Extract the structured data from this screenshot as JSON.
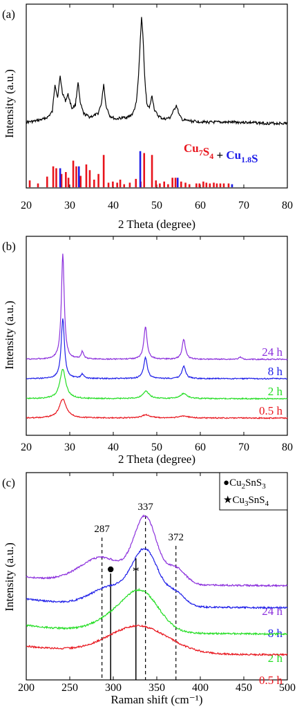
{
  "chart_data": [
    {
      "panel_label": "(a)",
      "type": "line",
      "xlabel": "2 Theta (degree)",
      "ylabel": "Intensity (a.u.)",
      "xlim": [
        20,
        80
      ],
      "xticks": [
        20,
        30,
        40,
        50,
        60,
        70,
        80
      ],
      "series": [
        {
          "color": "#000000",
          "x": [
            20,
            22,
            24,
            25,
            26,
            26.6,
            27.2,
            27.8,
            28.3,
            29,
            29.6,
            30.5,
            31.3,
            31.9,
            32.4,
            33.2,
            34.5,
            35.5,
            36.5,
            37.3,
            37.8,
            38.3,
            39.2,
            40.5,
            42,
            43.5,
            44.5,
            45.3,
            45.8,
            46.2,
            46.5,
            46.8,
            47.2,
            47.7,
            48.3,
            48.9,
            49.5,
            50.3,
            51.5,
            53,
            53.8,
            54.5,
            55.2,
            56,
            58,
            62,
            66,
            70,
            75,
            80
          ],
          "y": [
            0.02,
            0.03,
            0.05,
            0.07,
            0.12,
            0.38,
            0.25,
            0.45,
            0.3,
            0.22,
            0.28,
            0.15,
            0.18,
            0.4,
            0.2,
            0.1,
            0.07,
            0.08,
            0.1,
            0.2,
            0.38,
            0.18,
            0.08,
            0.05,
            0.06,
            0.07,
            0.1,
            0.2,
            0.45,
            0.78,
            1.0,
            0.85,
            0.45,
            0.2,
            0.15,
            0.27,
            0.13,
            0.08,
            0.05,
            0.06,
            0.12,
            0.18,
            0.08,
            0.04,
            0.03,
            0.02,
            0.02,
            0.02,
            0.01,
            0.01
          ]
        }
      ],
      "reference_bars": {
        "legend_parts": [
          {
            "text": "Cu",
            "sub": "7",
            "color": "#e8141c"
          },
          {
            "text": "S",
            "sub": "4",
            "color": "#e8141c"
          },
          {
            "text": " + ",
            "sub": "",
            "color": "#000000"
          },
          {
            "text": "Cu",
            "sub": "1.8",
            "color": "#1d1de8"
          },
          {
            "text": "S",
            "sub": "",
            "color": "#1d1de8"
          }
        ],
        "Cu7S4": {
          "color": "#e8141c",
          "x": [
            20.8,
            22.7,
            24.8,
            26.2,
            26.9,
            28.1,
            29.1,
            29.7,
            30.8,
            31.5,
            32.5,
            33.8,
            34.6,
            35.6,
            36.6,
            37.8,
            38.9,
            39.9,
            40.9,
            41.6,
            42.5,
            43.8,
            45.2,
            46.3,
            47.1,
            48.9,
            49.8,
            50.7,
            51.7,
            52.6,
            53.6,
            54.3,
            55.6,
            56.6,
            57.5,
            59.1,
            59.8,
            60.7,
            61.4,
            62.2,
            63.1,
            63.8,
            64.6,
            65.4,
            66.5
          ],
          "h": [
            0.18,
            0.1,
            0.28,
            0.55,
            0.5,
            0.35,
            0.4,
            0.25,
            0.7,
            0.55,
            0.3,
            0.6,
            0.45,
            0.2,
            0.35,
            0.85,
            0.12,
            0.15,
            0.12,
            0.2,
            0.08,
            0.12,
            0.22,
            0.15,
            0.9,
            0.85,
            0.18,
            0.1,
            0.15,
            0.08,
            0.25,
            0.25,
            0.15,
            0.12,
            0.08,
            0.1,
            0.1,
            0.15,
            0.12,
            0.1,
            0.12,
            0.1,
            0.1,
            0.1,
            0.1
          ]
        },
        "Cu1.8S": {
          "color": "#1d1de8",
          "x": [
            27.8,
            32.1,
            46.2,
            54.8,
            67.3
          ],
          "h": [
            0.5,
            0.55,
            0.95,
            0.25,
            0.08
          ]
        }
      }
    },
    {
      "panel_label": "(b)",
      "type": "line",
      "xlabel": "2 Theta (degree)",
      "ylabel": "Intensity (a.u.)",
      "xlim": [
        20,
        80
      ],
      "xticks": [
        20,
        30,
        40,
        50,
        60,
        70,
        80
      ],
      "series": [
        {
          "name": "24 h",
          "color": "#8b2fdc",
          "peaks": [
            [
              28.4,
              1.0,
              0.4
            ],
            [
              32.9,
              0.07,
              0.35
            ],
            [
              47.4,
              0.31,
              0.45
            ],
            [
              56.2,
              0.19,
              0.45
            ],
            [
              69.2,
              0.02,
              0.4
            ]
          ]
        },
        {
          "name": "8 h",
          "color": "#1d1de8",
          "peaks": [
            [
              28.4,
              0.57,
              0.45
            ],
            [
              32.9,
              0.04,
              0.4
            ],
            [
              47.4,
              0.2,
              0.5
            ],
            [
              56.2,
              0.12,
              0.5
            ]
          ]
        },
        {
          "name": "2 h",
          "color": "#22dd22",
          "peaks": [
            [
              28.4,
              0.28,
              0.8
            ],
            [
              47.5,
              0.07,
              0.9
            ],
            [
              56.2,
              0.05,
              0.9
            ]
          ]
        },
        {
          "name": "0.5 h",
          "color": "#e8141c",
          "peaks": [
            [
              28.4,
              0.18,
              1.0
            ],
            [
              47.5,
              0.03,
              1.2
            ],
            [
              56.2,
              0.02,
              1.2
            ]
          ]
        }
      ]
    },
    {
      "panel_label": "(c)",
      "type": "line",
      "xlabel": "Raman shift (cm⁻¹)",
      "ylabel": "Intensity (a.u.)",
      "xlim": [
        200,
        500
      ],
      "xticks": [
        200,
        250,
        300,
        350,
        400,
        450,
        500
      ],
      "legend": [
        {
          "marker": "●",
          "text": "Cu",
          "sub": "2",
          "rest": "SnS",
          "sub2": "3"
        },
        {
          "marker": "★",
          "text": "Cu",
          "sub": "3",
          "rest": "SnS",
          "sub2": "4"
        }
      ],
      "annotations": [
        "287",
        "337",
        "372"
      ],
      "dashed_lines": [
        287,
        337,
        372
      ],
      "solid_lines": [
        297,
        326
      ],
      "series": [
        {
          "name": "24 h",
          "color": "#8b2fdc",
          "bands": [
            [
              287,
              0.28,
              25
            ],
            [
              337,
              0.72,
              13
            ],
            [
              372,
              0.18,
              11
            ]
          ]
        },
        {
          "name": "8 h",
          "color": "#1d1de8",
          "bands": [
            [
              297,
              0.2,
              22
            ],
            [
              337,
              0.6,
              15
            ],
            [
              372,
              0.14,
              11
            ]
          ]
        },
        {
          "name": "2 h",
          "color": "#22dd22",
          "bands": [
            [
              300,
              0.14,
              22
            ],
            [
              333,
              0.42,
              20
            ]
          ]
        },
        {
          "name": "0.5 h",
          "color": "#e8141c",
          "bands": [
            [
              329,
              0.3,
              34
            ]
          ]
        }
      ]
    }
  ]
}
